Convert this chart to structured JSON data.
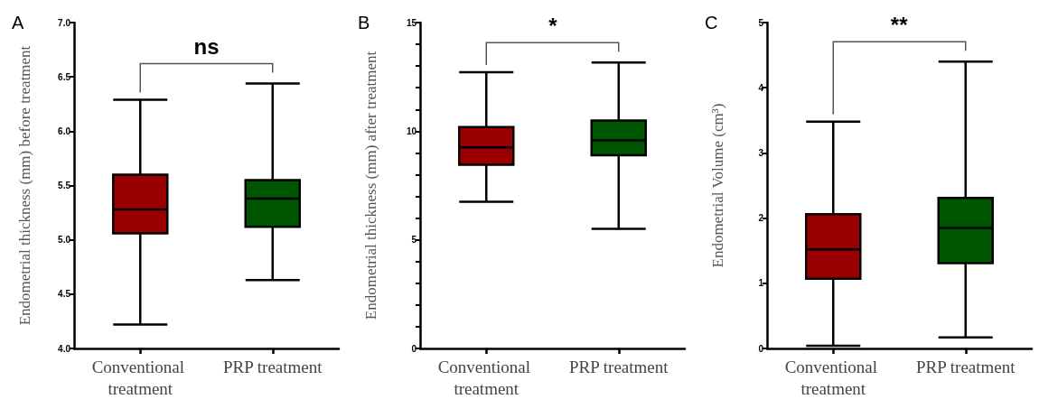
{
  "chart_data": [
    {
      "type": "box",
      "title": "A",
      "ylabel": "Endometrial thickness (mm) before treatment",
      "categories": [
        "Conventional treatment",
        "PRP treatment"
      ],
      "boxes": [
        {
          "low": 4.22,
          "q1": 5.06,
          "median": 5.28,
          "q3": 5.6,
          "high": 6.29
        },
        {
          "low": 4.63,
          "q1": 5.12,
          "median": 5.38,
          "q3": 5.55,
          "high": 6.44
        }
      ],
      "colors": [
        "#9b0000",
        "#005500"
      ],
      "ylim": [
        4,
        7
      ],
      "yticks": [
        {
          "value": 4,
          "label": "4.0"
        },
        {
          "value": 4.5,
          "label": "4.5"
        },
        {
          "value": 5,
          "label": "5.0"
        },
        {
          "value": 5.5,
          "label": "5.5"
        },
        {
          "value": 6,
          "label": "6.0"
        },
        {
          "value": 6.5,
          "label": "6.5"
        },
        {
          "value": 7,
          "label": "7.0"
        }
      ],
      "annotations": [
        "ns"
      ]
    },
    {
      "type": "box",
      "title": "B",
      "ylabel": "Endometrial thickness (mm) after treatment",
      "categories": [
        "Conventional treatment",
        "PRP treatment"
      ],
      "boxes": [
        {
          "low": 6.75,
          "q1": 8.46,
          "median": 9.26,
          "q3": 10.19,
          "high": 12.71
        },
        {
          "low": 5.51,
          "q1": 8.89,
          "median": 9.58,
          "q3": 10.49,
          "high": 13.16
        }
      ],
      "colors": [
        "#9b0000",
        "#005500"
      ],
      "ylim": [
        0,
        15
      ],
      "yticks": [
        0,
        {
          "value": 1,
          "label": null
        },
        {
          "value": 2,
          "label": null
        },
        {
          "value": 3,
          "label": null
        },
        {
          "value": 4,
          "label": null
        },
        5,
        {
          "value": 6,
          "label": null
        },
        {
          "value": 7,
          "label": null
        },
        {
          "value": 8,
          "label": null
        },
        {
          "value": 9,
          "label": null
        },
        10,
        {
          "value": 11,
          "label": null
        },
        {
          "value": 12,
          "label": null
        },
        {
          "value": 13,
          "label": null
        },
        {
          "value": 14,
          "label": null
        },
        15
      ],
      "annotations": [
        "*"
      ]
    },
    {
      "type": "box",
      "title": "C",
      "ylabel": "Endometrial Volume (cm³)",
      "categories": [
        "Conventional treatment",
        "PRP treatment"
      ],
      "boxes": [
        {
          "low": 0.04,
          "q1": 1.07,
          "median": 1.52,
          "q3": 2.06,
          "high": 3.48
        },
        {
          "low": 0.17,
          "q1": 1.31,
          "median": 1.85,
          "q3": 2.31,
          "high": 4.4
        }
      ],
      "colors": [
        "#9b0000",
        "#005500"
      ],
      "ylim": [
        0,
        5
      ],
      "yticks": [
        0,
        1,
        2,
        3,
        4,
        5
      ],
      "annotations": [
        "**"
      ]
    }
  ]
}
